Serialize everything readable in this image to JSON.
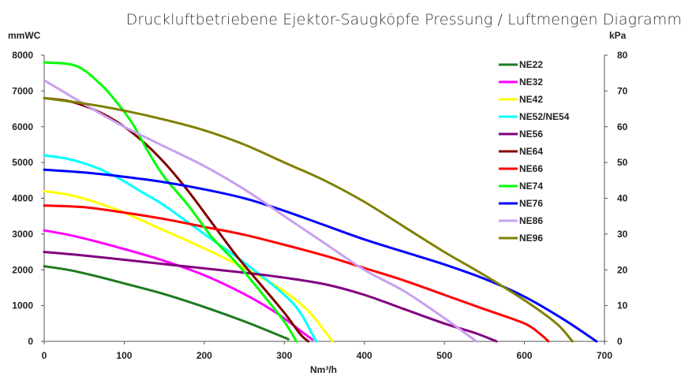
{
  "chart_data": {
    "type": "line",
    "title": "Druckluftbetriebene Ejektor-Saugköpfe Pressung / Luftmengen Diagramm",
    "xlabel": "Nm³/h",
    "ylabel_left": "mmWC",
    "ylabel_right": "kPa",
    "xlim": [
      0,
      700
    ],
    "ylim_left": [
      0,
      8000
    ],
    "ylim_right": [
      0,
      80
    ],
    "xticks": [
      "0",
      "100",
      "200",
      "300",
      "400",
      "500",
      "600",
      "700"
    ],
    "yticks_left": [
      "0",
      "1000",
      "2000",
      "3000",
      "4000",
      "5000",
      "6000",
      "7000",
      "8000"
    ],
    "yticks_right": [
      "0",
      "10",
      "20",
      "30",
      "40",
      "50",
      "60",
      "70",
      "80"
    ],
    "grid": false,
    "legend_position": "top-right",
    "series": [
      {
        "name": "NE22",
        "color": "#1f7a1f",
        "points": [
          [
            0,
            2100
          ],
          [
            30,
            2000
          ],
          [
            60,
            1850
          ],
          [
            100,
            1620
          ],
          [
            150,
            1320
          ],
          [
            200,
            960
          ],
          [
            250,
            560
          ],
          [
            290,
            200
          ],
          [
            305,
            60
          ]
        ]
      },
      {
        "name": "NE32",
        "color": "#ff00ff",
        "points": [
          [
            0,
            3100
          ],
          [
            30,
            2980
          ],
          [
            60,
            2820
          ],
          [
            100,
            2580
          ],
          [
            150,
            2250
          ],
          [
            200,
            1850
          ],
          [
            250,
            1320
          ],
          [
            290,
            800
          ],
          [
            320,
            300
          ],
          [
            335,
            50
          ]
        ]
      },
      {
        "name": "NE42",
        "color": "#ffff00",
        "points": [
          [
            0,
            4200
          ],
          [
            30,
            4100
          ],
          [
            60,
            3920
          ],
          [
            100,
            3600
          ],
          [
            150,
            3100
          ],
          [
            200,
            2600
          ],
          [
            250,
            2050
          ],
          [
            300,
            1400
          ],
          [
            330,
            850
          ],
          [
            350,
            300
          ],
          [
            360,
            0
          ]
        ]
      },
      {
        "name": "NE52/NE54",
        "color": "#00ffff",
        "points": [
          [
            0,
            5200
          ],
          [
            30,
            5100
          ],
          [
            60,
            4900
          ],
          [
            90,
            4600
          ],
          [
            120,
            4200
          ],
          [
            150,
            3800
          ],
          [
            200,
            3000
          ],
          [
            250,
            2200
          ],
          [
            300,
            1300
          ],
          [
            320,
            800
          ],
          [
            335,
            200
          ],
          [
            340,
            0
          ]
        ]
      },
      {
        "name": "NE56",
        "color": "#800080",
        "points": [
          [
            0,
            2500
          ],
          [
            50,
            2400
          ],
          [
            100,
            2280
          ],
          [
            150,
            2160
          ],
          [
            200,
            2040
          ],
          [
            250,
            1920
          ],
          [
            300,
            1780
          ],
          [
            350,
            1600
          ],
          [
            400,
            1300
          ],
          [
            450,
            900
          ],
          [
            500,
            500
          ],
          [
            540,
            220
          ],
          [
            565,
            0
          ]
        ]
      },
      {
        "name": "NE64",
        "color": "#800000",
        "points": [
          [
            0,
            6800
          ],
          [
            30,
            6720
          ],
          [
            60,
            6500
          ],
          [
            90,
            6150
          ],
          [
            120,
            5650
          ],
          [
            150,
            5000
          ],
          [
            180,
            4200
          ],
          [
            210,
            3300
          ],
          [
            240,
            2400
          ],
          [
            270,
            1600
          ],
          [
            300,
            800
          ],
          [
            320,
            200
          ],
          [
            330,
            0
          ]
        ]
      },
      {
        "name": "NE66",
        "color": "#ff0000",
        "points": [
          [
            0,
            3800
          ],
          [
            50,
            3750
          ],
          [
            100,
            3600
          ],
          [
            150,
            3420
          ],
          [
            200,
            3200
          ],
          [
            250,
            2980
          ],
          [
            300,
            2700
          ],
          [
            350,
            2400
          ],
          [
            400,
            2050
          ],
          [
            450,
            1700
          ],
          [
            500,
            1300
          ],
          [
            550,
            900
          ],
          [
            600,
            500
          ],
          [
            620,
            200
          ],
          [
            630,
            0
          ]
        ]
      },
      {
        "name": "NE74",
        "color": "#00ff00",
        "points": [
          [
            0,
            7800
          ],
          [
            40,
            7700
          ],
          [
            70,
            7200
          ],
          [
            90,
            6700
          ],
          [
            110,
            6100
          ],
          [
            130,
            5300
          ],
          [
            150,
            4600
          ],
          [
            180,
            3800
          ],
          [
            210,
            2900
          ],
          [
            240,
            2200
          ],
          [
            270,
            1400
          ],
          [
            300,
            550
          ],
          [
            315,
            0
          ]
        ]
      },
      {
        "name": "NE76",
        "color": "#0000ff",
        "points": [
          [
            0,
            4800
          ],
          [
            50,
            4720
          ],
          [
            100,
            4600
          ],
          [
            150,
            4450
          ],
          [
            200,
            4250
          ],
          [
            250,
            4000
          ],
          [
            300,
            3650
          ],
          [
            350,
            3250
          ],
          [
            400,
            2850
          ],
          [
            450,
            2500
          ],
          [
            500,
            2150
          ],
          [
            550,
            1750
          ],
          [
            600,
            1250
          ],
          [
            650,
            600
          ],
          [
            690,
            0
          ]
        ]
      },
      {
        "name": "NE86",
        "color": "#c8a0f0",
        "points": [
          [
            0,
            7300
          ],
          [
            30,
            6900
          ],
          [
            60,
            6500
          ],
          [
            100,
            6000
          ],
          [
            150,
            5450
          ],
          [
            200,
            4900
          ],
          [
            250,
            4250
          ],
          [
            300,
            3500
          ],
          [
            350,
            2750
          ],
          [
            400,
            2000
          ],
          [
            450,
            1400
          ],
          [
            500,
            650
          ],
          [
            540,
            0
          ]
        ]
      },
      {
        "name": "NE96",
        "color": "#808000",
        "points": [
          [
            0,
            6800
          ],
          [
            50,
            6650
          ],
          [
            100,
            6450
          ],
          [
            150,
            6200
          ],
          [
            200,
            5900
          ],
          [
            250,
            5500
          ],
          [
            300,
            5000
          ],
          [
            350,
            4500
          ],
          [
            400,
            3900
          ],
          [
            450,
            3200
          ],
          [
            500,
            2500
          ],
          [
            550,
            1850
          ],
          [
            600,
            1150
          ],
          [
            640,
            500
          ],
          [
            660,
            0
          ]
        ]
      }
    ]
  }
}
